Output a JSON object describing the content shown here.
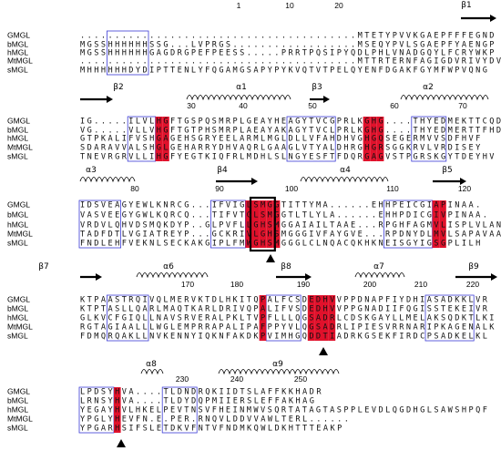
{
  "blocks": [
    {
      "numbers": [
        "1",
        "10",
        "20"
      ],
      "structure": [
        "β1"
      ],
      "rows": [
        {
          "name": "GMGL",
          "sequence": "........................................MTETYPVVKGAEPFFFEGND"
        },
        {
          "name": "bMGL",
          "sequence": "MGSSHHHHHHSSG...LVPRGS..................MSEQYPVLSGAEPFYAENGP"
        },
        {
          "name": "hMGL",
          "sequence": "MGSSHHHHHHGAGDRGPEFPEESS.....PRRTPQSIPYQDLPHLVNADGQYLFCRYWKP"
        },
        {
          "name": "MtMGL",
          "sequence": "........................................MTTRTERNFAGIGDVRIVYDVWTP"
        },
        {
          "name": "sMGL",
          "sequence": "MHHHHHHDYDIPTTENLYFQGAMGSAPYPYKVQTVTPELQYENFDGAKFGYMFWPVQNG"
        }
      ]
    },
    {
      "numbers": [
        "30",
        "40",
        "50",
        "60",
        "70"
      ],
      "structure": [
        "β2",
        "α1",
        "β3",
        "α2"
      ],
      "rows": [
        {
          "name": "GMGL",
          "sequence": "IG.....ILVLHGFTGSPQSMRPLGEAYHEAGYTVCGPRLKGHG....THYEDMEKTTCQDW"
        },
        {
          "name": "bMGL",
          "sequence": "VG.....VLLVHGFTGTPHSMRPLAEAYAKAGYTVCLPRLKGHG....THYEDMERTTFHDW"
        },
        {
          "name": "hMGL",
          "sequence": "GTPKALIFVSHGAGEHSGRYEELARMLMGLDLLVFAHDHVGHGQSEGERMVVSDFHVF"
        },
        {
          "name": "MtMGL",
          "sequence": "SDARAVVALSHGLGEHARRYDHVAQRLGAAGLVTYALDHRGHGRSGGKRVLVRDISEY"
        },
        {
          "name": "sMGL",
          "sequence": "TNEVRGRVLLIHGFYEGTKIQFRLMDHLSLNGYESFTFDQRGAGVSTPGRSKGYTDEYHV"
        }
      ]
    },
    {
      "numbers": [
        "80",
        "90",
        "100",
        "110",
        "120"
      ],
      "structure": [
        "α3",
        "β4",
        "α4",
        "β5"
      ],
      "rows": [
        {
          "name": "GMGL",
          "sequence": "IDSVEAGYEWLKNRCG...IFVIGLSMGGTITTYMA......EHHPEICGIAPINAA."
        },
        {
          "name": "bMGL",
          "sequence": "VASVEEGYGWLKQRCQ...TIFVTGLSMGGTLTLYLA......EHHPDICGIVPINAA."
        },
        {
          "name": "hMGL",
          "sequence": "VRDVLQHVDSMQKDYP..GLPVFLLGHSMGGAIAILTAAE...RPGHFAGMVLISPLVLAN"
        },
        {
          "name": "MtMGL",
          "sequence": "TADFDTLVGIATREYP...GCKRIVLGHSMGGGIVFAYGVE...RPDNYDLMVLSAPAVAAQ"
        },
        {
          "name": "sMGL",
          "sequence": "FNDLEHFVEKNLSECKAKGIPLFMWGHSMGGGLCLNQACQKHKNEISGYIGSGPLILH"
        }
      ]
    },
    {
      "numbers": [
        "170",
        "180",
        "190",
        "200",
        "210",
        "220"
      ],
      "structure": [
        "β7",
        "α6",
        "β8",
        "α7",
        "β9"
      ],
      "rows": [
        {
          "name": "GMGL",
          "sequence": "KTPAASTRQIVQLMERVKTDLHKITQPALFCSDEDHVVPPDNAPFIYDHIASADKKLVR"
        },
        {
          "name": "bMGL",
          "sequence": "KTPTASLLQARLMAQTKARLDRIVQPALIFVSDEDHVVPPGNADIIFQGISSTEKEIVR"
        },
        {
          "name": "hMGL",
          "sequence": "GLKVCFGIQLLNAVSRVERALPKLTVPFLLLQGSADRLCDSKGAYLLMELAKSQDKTLKI"
        },
        {
          "name": "MtMGL",
          "sequence": "RGTAGIAALLLWGLEMPRRAPALIPAFPPYVLQGSADRLIPIESVRRNARIPKAGENALK"
        },
        {
          "name": "sMGL",
          "sequence": "FDMQRQAKLLNVKENNYIQKNFAKDKPVIMHGQDDTIADRKGSEKFIRDCPSADKELKL"
        }
      ]
    },
    {
      "numbers": [
        "230",
        "240",
        "250"
      ],
      "structure": [
        "α8",
        "α9"
      ],
      "rows": [
        {
          "name": "GMGL",
          "sequence": "LPDSYHVA....TLDNDRQKIIDTSLAFFKKHADR"
        },
        {
          "name": "bMGL",
          "sequence": "LRNSYHVA....TLDYDQPMIIERSLEFFAKHAG"
        },
        {
          "name": "hMGL",
          "sequence": "YEGAYHVLHKELPEVTNSVFHEINMWVSQRTATAGTASPPLEVDLQGDHGLSAWSHPQF"
        },
        {
          "name": "MtMGL",
          "sequence": "YPGLYHEVFN.E.PER.RNQVLDDVVAWLTERL......"
        },
        {
          "name": "sMGL",
          "sequence": "YPGARHSIFSLETDKVFNTVFNDMKQWLDKHTTTEAKP"
        }
      ]
    }
  ]
}
